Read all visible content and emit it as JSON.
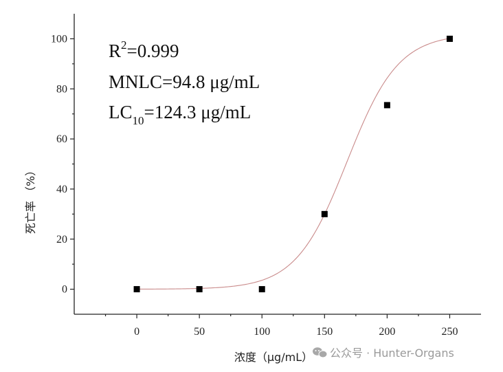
{
  "chart_data": {
    "type": "scatter",
    "xlabel": "浓度（μg/mL）",
    "ylabel": "死亡率 （%）",
    "xlim": [
      -50,
      275
    ],
    "ylim": [
      -10,
      110
    ],
    "x_ticks": [
      0,
      50,
      100,
      150,
      200,
      250
    ],
    "y_ticks": [
      0,
      20,
      40,
      60,
      80,
      100
    ],
    "grid": false,
    "points": [
      {
        "x": 0,
        "y": 0
      },
      {
        "x": 50,
        "y": 0
      },
      {
        "x": 100,
        "y": 0
      },
      {
        "x": 150,
        "y": 30
      },
      {
        "x": 200,
        "y": 73.5
      },
      {
        "x": 250,
        "y": 100
      }
    ],
    "fit_curve": {
      "type": "sigmoid",
      "color": "#c98a8a"
    },
    "marker_color": "#000000",
    "annotations": {
      "r2": {
        "base": "R",
        "sup": "2",
        "rest": "=0.999"
      },
      "mnlc": "MNLC=94.8 μg/mL",
      "lc10": {
        "base": "LC",
        "sub": "10",
        "rest": "=124.3 μg/mL"
      }
    }
  },
  "watermark": {
    "icon": "wechat-icon",
    "text": "公众号 · Hunter-Organs"
  }
}
